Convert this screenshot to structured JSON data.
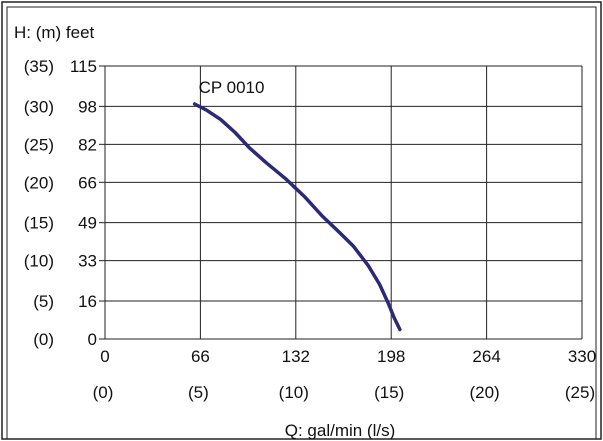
{
  "chart_data": {
    "type": "line",
    "title": "",
    "ylabel": "H: (m) feet",
    "xlabel": "Q: gal/min (l/s)",
    "x_ticks_primary": [
      "0",
      "66",
      "132",
      "198",
      "264",
      "330"
    ],
    "x_ticks_secondary": [
      "(0)",
      "(5)",
      "(10)",
      "(15)",
      "(20)",
      "(25)"
    ],
    "y_ticks_feet": [
      "0",
      "16",
      "33",
      "49",
      "66",
      "82",
      "98",
      "115"
    ],
    "y_ticks_meters": [
      "(0)",
      "(5)",
      "(10)",
      "(15)",
      "(20)",
      "(25)",
      "(30)",
      "(35)"
    ],
    "xlim": [
      0,
      330
    ],
    "ylim": [
      0,
      115
    ],
    "grid": true,
    "series": [
      {
        "name": "CP 0010",
        "color": "#2b2a78",
        "x": [
          62,
          70,
          80,
          90,
          100,
          112,
          125,
          138,
          150,
          162,
          172,
          182,
          190,
          196,
          200,
          204
        ],
        "y": [
          99,
          96.5,
          92.5,
          87,
          80.5,
          74,
          67.5,
          60,
          52,
          45,
          39,
          31,
          23,
          15,
          9,
          4
        ]
      }
    ]
  }
}
